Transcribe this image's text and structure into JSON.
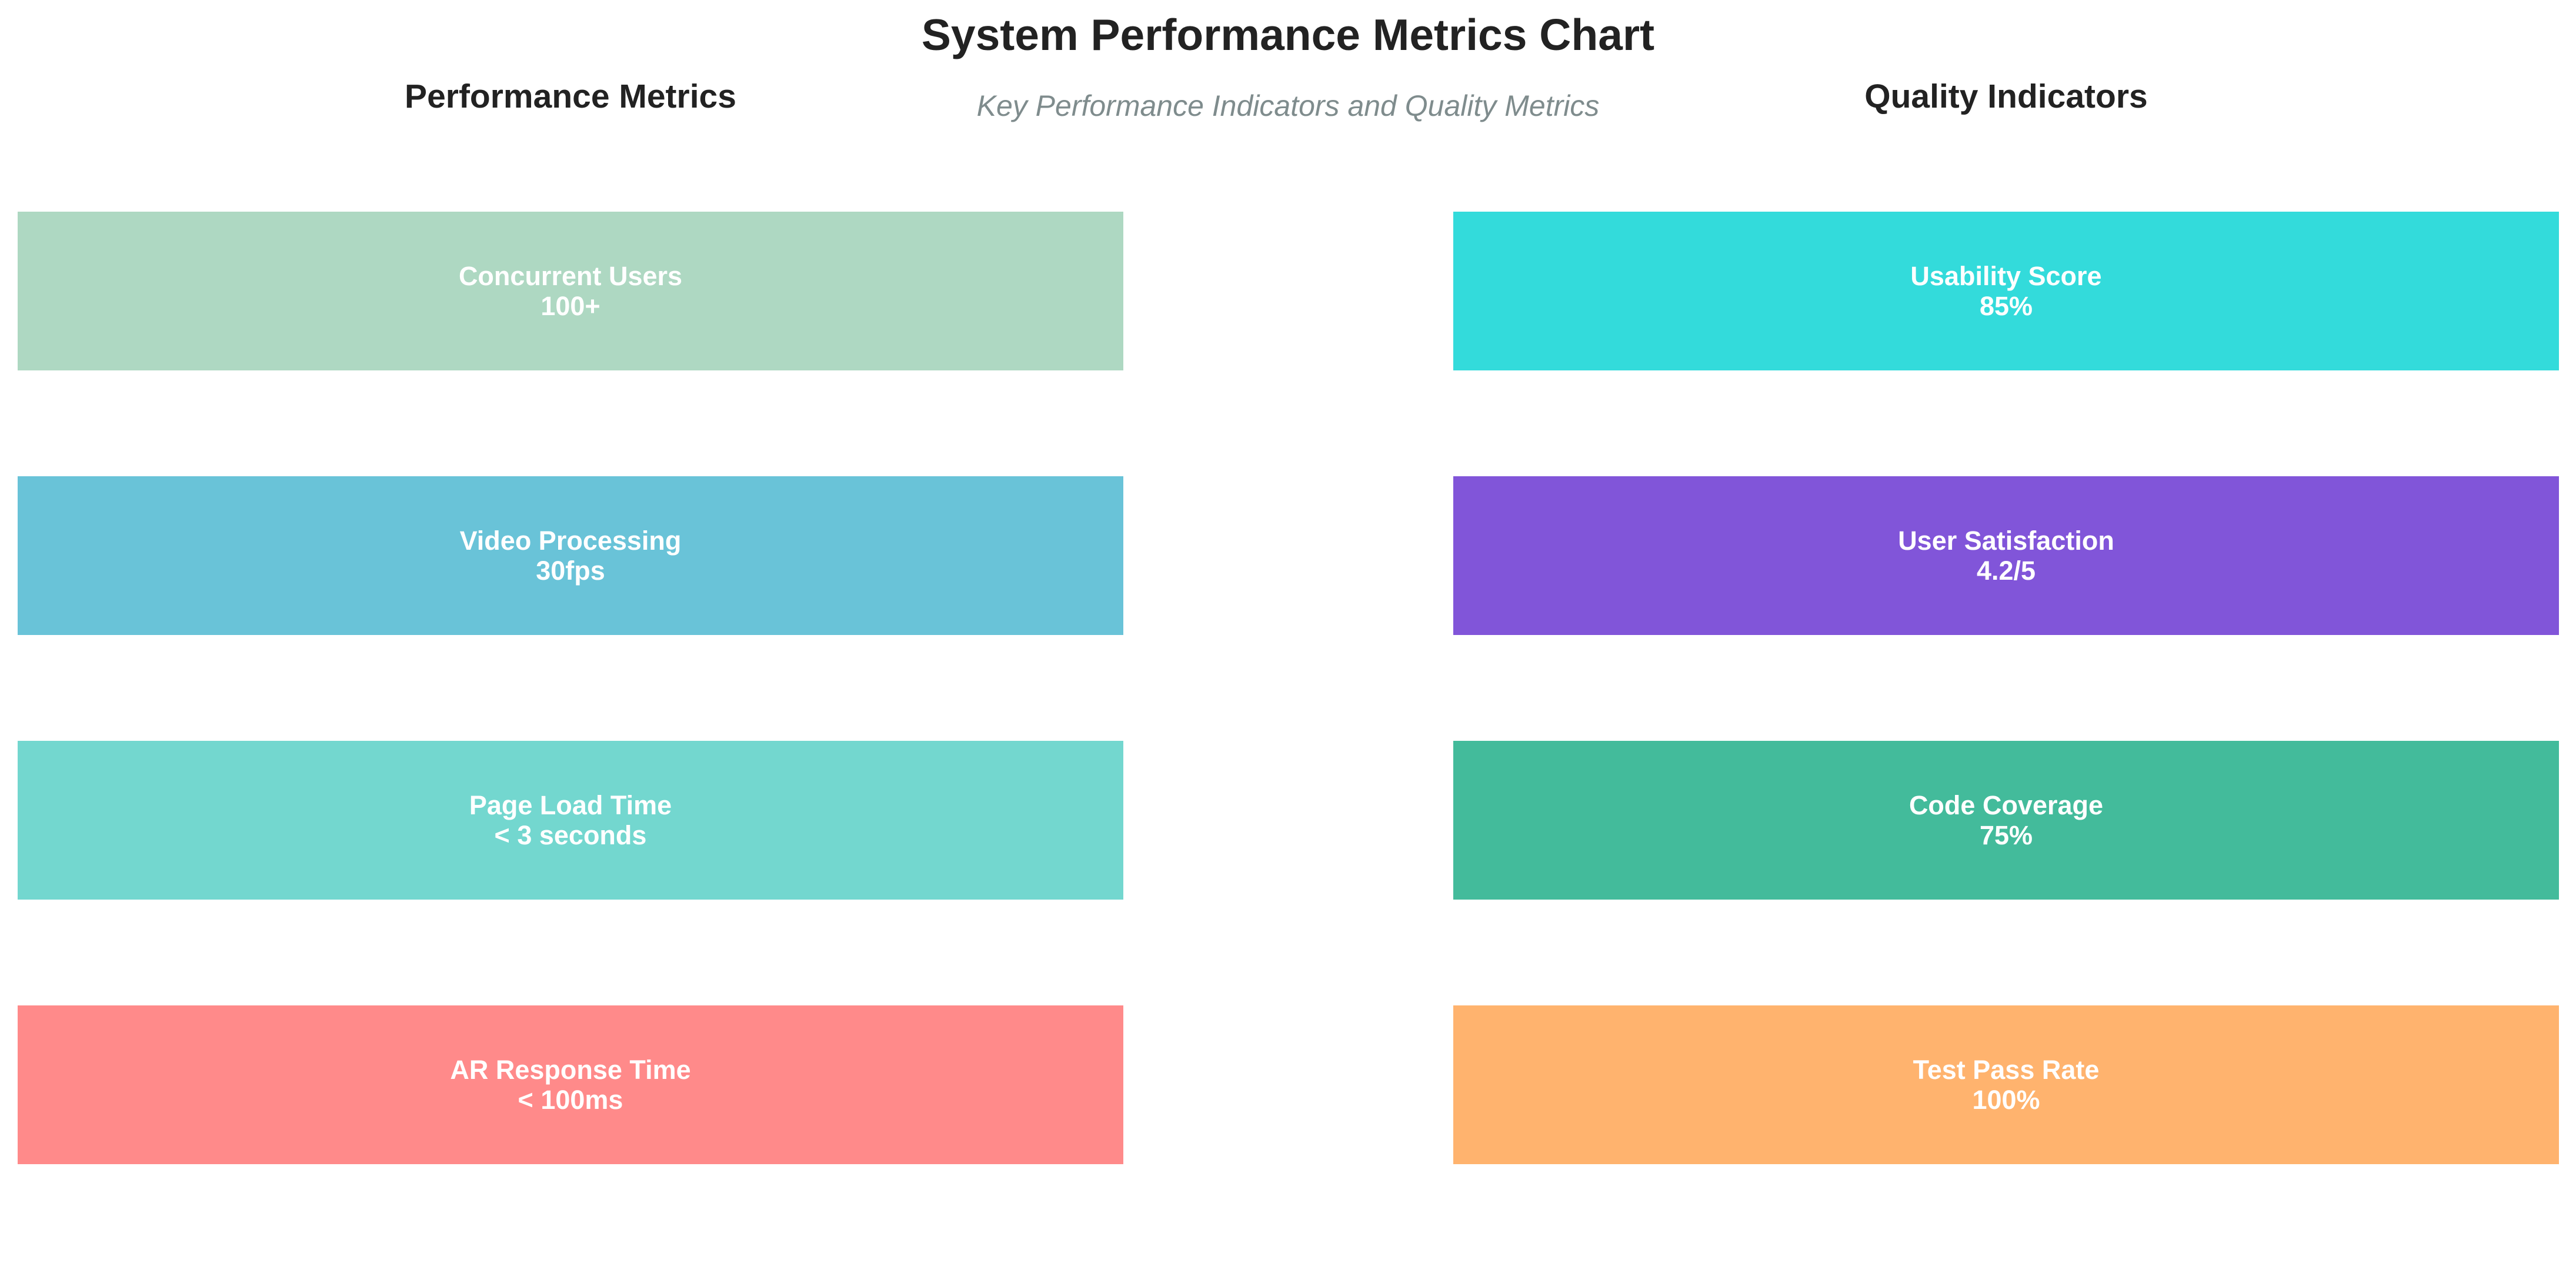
{
  "title": "System Performance Metrics Chart",
  "subtitle": "Key Performance Indicators and Quality Metrics",
  "chart_data": {
    "type": "table",
    "title": "System Performance Metrics Chart",
    "subtitle": "Key Performance Indicators and Quality Metrics",
    "panels": [
      {
        "title": "Performance Metrics",
        "metrics": [
          {
            "label": "Concurrent Users",
            "value": "100+",
            "color": "#aed8c2"
          },
          {
            "label": "Video Processing",
            "value": "30fps",
            "color": "#69c3d8"
          },
          {
            "label": "Page Load Time",
            "value": "< 3 seconds",
            "color": "#73d7cf"
          },
          {
            "label": "AR Response Time",
            "value": "< 100ms",
            "color": "#ff8a8a"
          }
        ]
      },
      {
        "title": "Quality Indicators",
        "metrics": [
          {
            "label": "Usability Score",
            "value": "85%",
            "color": "#33dbdb"
          },
          {
            "label": "User Satisfaction",
            "value": "4.2/5",
            "color": "#8155d9"
          },
          {
            "label": "Code Coverage",
            "value": "75%",
            "color": "#43bb9b"
          },
          {
            "label": "Test Pass Rate",
            "value": "100%",
            "color": "#ffb36e"
          }
        ]
      }
    ]
  }
}
